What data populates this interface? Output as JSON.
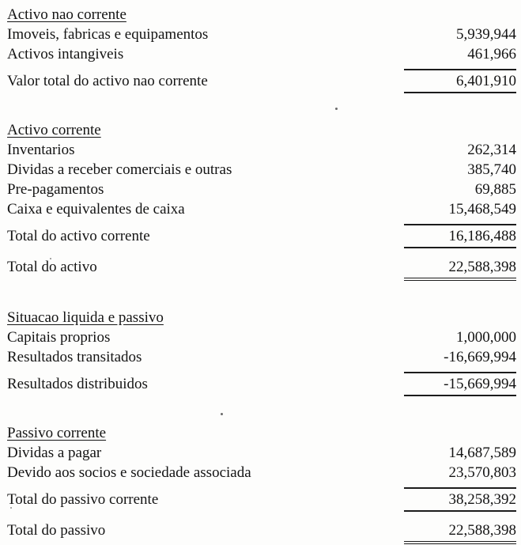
{
  "document": {
    "type": "balance-sheet-scan",
    "language": "pt",
    "text_color": "#141414",
    "background_color": "#fdfdfc",
    "sections": [
      {
        "heading": "Activo nao corrente",
        "rows": [
          {
            "label": "Imoveis, fabricas e equipamentos",
            "value": "5,939,944",
            "style": "plain"
          },
          {
            "label": "Activos intangiveis",
            "value": "461,966",
            "style": "plain"
          },
          {
            "label": "Valor total do activo nao corrente",
            "value": "6,401,910",
            "style": "subtotal"
          }
        ]
      },
      {
        "heading": "Activo corrente",
        "rows": [
          {
            "label": "Inventarios",
            "value": "262,314",
            "style": "plain"
          },
          {
            "label": "Dividas a receber comerciais e outras",
            "value": "385,740",
            "style": "plain"
          },
          {
            "label": "Pre-pagamentos",
            "value": "69,885",
            "style": "plain"
          },
          {
            "label": "Caixa e equivalentes de caixa",
            "value": "15,468,549",
            "style": "plain"
          },
          {
            "label": "Total do activo corrente",
            "value": "16,186,488",
            "style": "subtotal"
          },
          {
            "label": "Total do activo",
            "value": "22,588,398",
            "style": "grandtotal"
          }
        ]
      },
      {
        "heading": "Situacao liquida e passivo",
        "rows": [
          {
            "label": "Capitais proprios",
            "value": "1,000,000",
            "style": "plain"
          },
          {
            "label": "Resultados transitados",
            "value": "-16,669,994",
            "style": "plain"
          },
          {
            "label": "Resultados distribuidos",
            "value": "-15,669,994",
            "style": "subtotal"
          }
        ]
      },
      {
        "heading": "Passivo corrente",
        "rows": [
          {
            "label": "Dividas a pagar",
            "value": "14,687,589",
            "style": "plain"
          },
          {
            "label": "Devido aos socios e sociedade associada",
            "value": "23,570,803",
            "style": "plain"
          },
          {
            "label": "Total do passivo corrente",
            "value": "38,258,392",
            "style": "subtotal"
          },
          {
            "label": "Total do passivo",
            "value": "22,588,398",
            "style": "grandtotal"
          }
        ]
      }
    ]
  }
}
